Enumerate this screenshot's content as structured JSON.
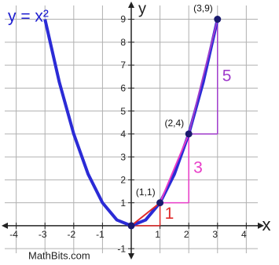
{
  "chart_data": {
    "type": "line",
    "title": "y = x²",
    "x_label": "x",
    "y_label": "y",
    "source": "MathBits.com",
    "xlim": [
      -4.4,
      4.4
    ],
    "ylim": [
      -1.2,
      9.6
    ],
    "xticks": [
      -4,
      -3,
      -2,
      -1,
      1,
      2,
      3,
      4
    ],
    "yticks": [
      -1,
      1,
      2,
      3,
      4,
      5,
      6,
      7,
      8,
      9
    ],
    "grid": true,
    "series": [
      {
        "color": "#2b2bd6",
        "x": [
          -3,
          -2.5,
          -2,
          -1.5,
          -1,
          -0.5,
          0,
          0.5,
          1,
          1.5,
          2,
          2.5,
          3
        ],
        "values": [
          9,
          6.25,
          4,
          2.25,
          1,
          0.25,
          0,
          0.25,
          1,
          2.25,
          4,
          6.25,
          9
        ]
      }
    ],
    "points": {
      "color": "#1a1a6e",
      "x": [
        0,
        1,
        2,
        3
      ],
      "values": [
        0,
        1,
        4,
        9
      ],
      "value_labels": [
        null,
        "(1,1)",
        "(2,4)",
        "(3,9)"
      ]
    },
    "steps": [
      {
        "x": [
          0,
          1
        ],
        "values": [
          0,
          1
        ],
        "rise": 1,
        "color": "#e02a2a"
      },
      {
        "x": [
          1,
          2
        ],
        "values": [
          1,
          4
        ],
        "rise": 3,
        "color": "#e83cc8"
      },
      {
        "x": [
          2,
          3
        ],
        "values": [
          4,
          9
        ],
        "rise": 5,
        "color": "#a03ccc"
      }
    ]
  }
}
